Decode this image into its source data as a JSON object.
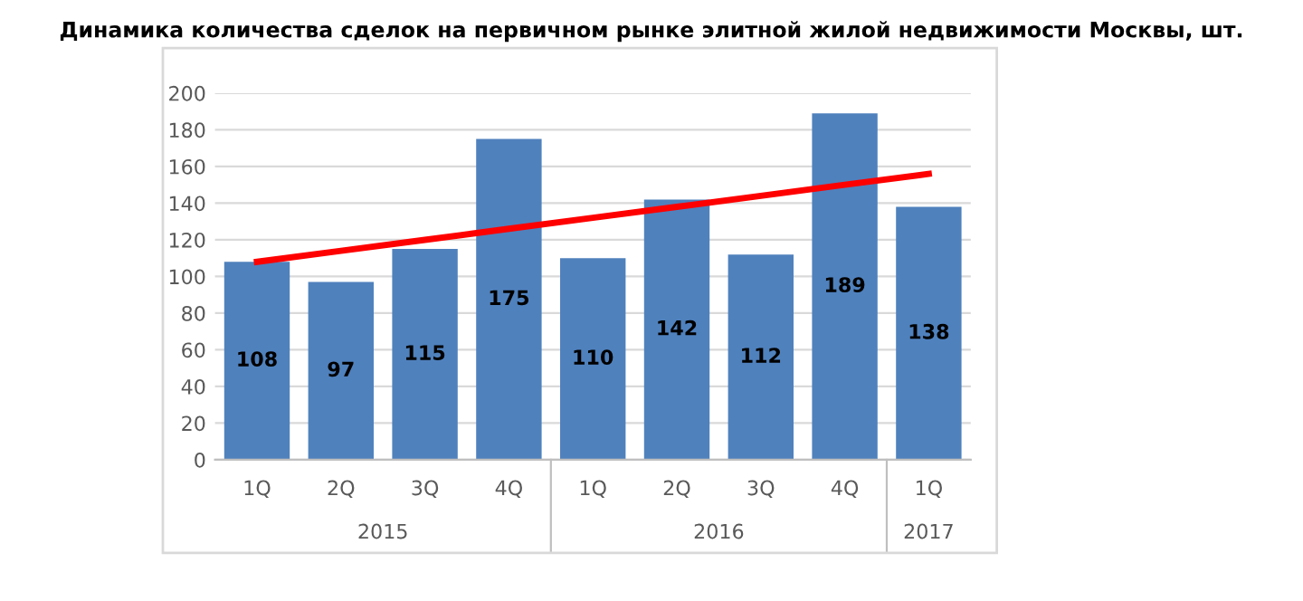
{
  "chart_data": {
    "type": "bar",
    "title": "Динамика количества сделок на первичном рынке элитной жилой недвижимости Москвы, шт.",
    "categories": [
      "1Q",
      "2Q",
      "3Q",
      "4Q",
      "1Q",
      "2Q",
      "3Q",
      "4Q",
      "1Q"
    ],
    "series": [
      {
        "type": "bar",
        "color": "#4f81bd",
        "values": [
          108,
          97,
          115,
          175,
          110,
          142,
          112,
          189,
          138
        ],
        "data_labels": true
      },
      {
        "type": "line",
        "color": "#ff0000",
        "values": [
          108,
          114,
          120,
          126,
          132,
          138,
          144,
          150,
          156
        ],
        "line_style": "solid",
        "marker": "none"
      }
    ],
    "annotations": [
      "2015",
      "2016",
      "2017"
    ],
    "ylim": [
      0,
      200
    ],
    "yticks": [
      0,
      20,
      40,
      60,
      80,
      100,
      120,
      140,
      160,
      180,
      200
    ],
    "grid": "y",
    "legend": false
  }
}
